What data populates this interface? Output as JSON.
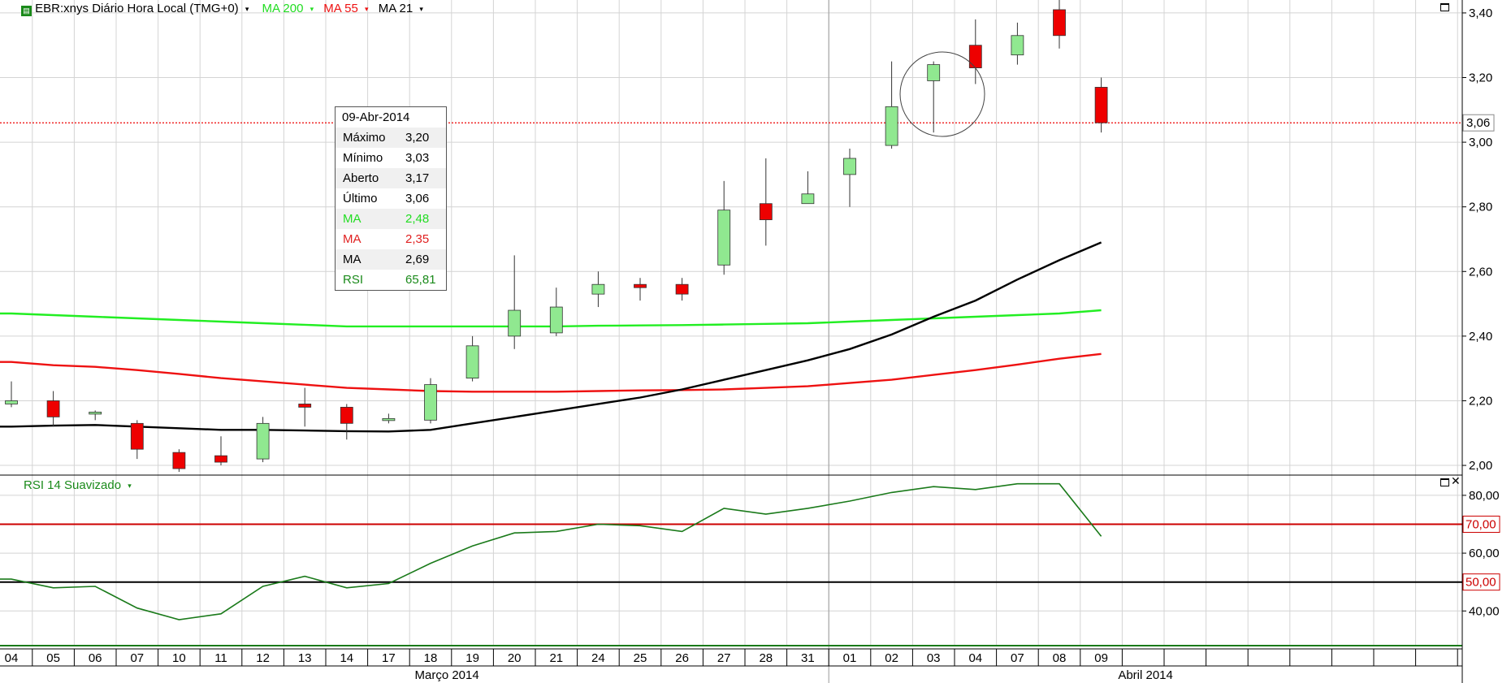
{
  "header": {
    "symbol": "EBR:xnys Diário Hora Local (TMG+0)",
    "ma200": "MA 200",
    "ma55": "MA 55",
    "ma21": "MA 21",
    "caret": "▾"
  },
  "rsi_header": {
    "label": "RSI 14 Suavizado"
  },
  "tooltip": {
    "date": "09-Abr-2014",
    "rows": [
      {
        "label": "Máximo",
        "value": "3,20",
        "color": "#000000"
      },
      {
        "label": "Mínimo",
        "value": "3,03",
        "color": "#000000"
      },
      {
        "label": "Aberto",
        "value": "3,17",
        "color": "#000000"
      },
      {
        "label": "Último",
        "value": "3,06",
        "color": "#000000"
      },
      {
        "label": "MA",
        "value": "2,48",
        "color": "#22dd22"
      },
      {
        "label": "MA",
        "value": "2,35",
        "color": "#e02020"
      },
      {
        "label": "MA",
        "value": "2,69",
        "color": "#000000"
      },
      {
        "label": "RSI",
        "value": "65,81",
        "color": "#1a8a1a"
      }
    ]
  },
  "colors": {
    "up": "#90e890",
    "down": "#ee0000",
    "ma200": "#22ee22",
    "ma55": "#ee1111",
    "ma21": "#000000",
    "rsi": "#1a7a1a",
    "level70": "#cc0000",
    "grid": "#d4d4d4"
  },
  "chart_data": [
    {
      "type": "candlestick",
      "title": "EBR:xnys Diário Hora Local (TMG+0)",
      "ylim": [
        1.97,
        3.44
      ],
      "y_ticks": [
        "3,40",
        "3,20",
        "3,00",
        "2,80",
        "2,60",
        "2,40",
        "2,20",
        "2,00"
      ],
      "y_tick_values": [
        3.4,
        3.2,
        3.0,
        2.8,
        2.6,
        2.4,
        2.2,
        2.0
      ],
      "categories": [
        "04",
        "05",
        "06",
        "07",
        "10",
        "11",
        "12",
        "13",
        "14",
        "17",
        "18",
        "19",
        "20",
        "21",
        "24",
        "25",
        "26",
        "27",
        "28",
        "31",
        "01",
        "02",
        "03",
        "04",
        "07",
        "08",
        "09"
      ],
      "month_labels": [
        "Março 2014",
        "Abril 2014"
      ],
      "last_price": 3.06,
      "last_price_label": "3,06",
      "candles": [
        {
          "o": 2.19,
          "h": 2.26,
          "l": 2.18,
          "c": 2.2
        },
        {
          "o": 2.2,
          "h": 2.23,
          "l": 2.12,
          "c": 2.15
        },
        {
          "o": 2.16,
          "h": 2.17,
          "l": 2.14,
          "c": 2.165
        },
        {
          "o": 2.13,
          "h": 2.14,
          "l": 2.02,
          "c": 2.05
        },
        {
          "o": 2.04,
          "h": 2.05,
          "l": 1.98,
          "c": 1.99
        },
        {
          "o": 2.03,
          "h": 2.09,
          "l": 2.0,
          "c": 2.01
        },
        {
          "o": 2.02,
          "h": 2.15,
          "l": 2.01,
          "c": 2.13
        },
        {
          "o": 2.19,
          "h": 2.24,
          "l": 2.12,
          "c": 2.18
        },
        {
          "o": 2.18,
          "h": 2.19,
          "l": 2.08,
          "c": 2.13
        },
        {
          "o": 2.14,
          "h": 2.16,
          "l": 2.13,
          "c": 2.145
        },
        {
          "o": 2.14,
          "h": 2.27,
          "l": 2.13,
          "c": 2.25
        },
        {
          "o": 2.27,
          "h": 2.4,
          "l": 2.26,
          "c": 2.37
        },
        {
          "o": 2.4,
          "h": 2.65,
          "l": 2.36,
          "c": 2.48
        },
        {
          "o": 2.41,
          "h": 2.55,
          "l": 2.4,
          "c": 2.49
        },
        {
          "o": 2.53,
          "h": 2.6,
          "l": 2.49,
          "c": 2.56
        },
        {
          "o": 2.56,
          "h": 2.58,
          "l": 2.51,
          "c": 2.55
        },
        {
          "o": 2.56,
          "h": 2.58,
          "l": 2.51,
          "c": 2.53
        },
        {
          "o": 2.62,
          "h": 2.88,
          "l": 2.59,
          "c": 2.79
        },
        {
          "o": 2.81,
          "h": 2.95,
          "l": 2.68,
          "c": 2.76
        },
        {
          "o": 2.81,
          "h": 2.91,
          "l": 2.81,
          "c": 2.84
        },
        {
          "o": 2.9,
          "h": 2.98,
          "l": 2.8,
          "c": 2.95
        },
        {
          "o": 2.99,
          "h": 3.25,
          "l": 2.98,
          "c": 3.11
        },
        {
          "o": 3.19,
          "h": 3.25,
          "l": 3.03,
          "c": 3.24
        },
        {
          "o": 3.3,
          "h": 3.38,
          "l": 3.18,
          "c": 3.23
        },
        {
          "o": 3.27,
          "h": 3.37,
          "l": 3.24,
          "c": 3.33
        },
        {
          "o": 3.41,
          "h": 3.45,
          "l": 3.29,
          "c": 3.33
        },
        {
          "o": 3.17,
          "h": 3.2,
          "l": 3.03,
          "c": 3.06
        }
      ],
      "series": [
        {
          "name": "MA 200",
          "values": [
            2.47,
            2.465,
            2.46,
            2.455,
            2.45,
            2.445,
            2.44,
            2.435,
            2.43,
            2.43,
            2.43,
            2.43,
            2.43,
            2.43,
            2.432,
            2.433,
            2.434,
            2.436,
            2.438,
            2.44,
            2.445,
            2.45,
            2.455,
            2.46,
            2.465,
            2.47,
            2.48
          ]
        },
        {
          "name": "MA 55",
          "values": [
            2.32,
            2.31,
            2.305,
            2.295,
            2.283,
            2.27,
            2.26,
            2.25,
            2.24,
            2.235,
            2.23,
            2.228,
            2.228,
            2.228,
            2.23,
            2.232,
            2.233,
            2.235,
            2.24,
            2.245,
            2.255,
            2.265,
            2.28,
            2.295,
            2.312,
            2.33,
            2.345
          ]
        },
        {
          "name": "MA 21",
          "values": [
            2.12,
            2.123,
            2.125,
            2.12,
            2.115,
            2.11,
            2.11,
            2.108,
            2.106,
            2.105,
            2.11,
            2.13,
            2.15,
            2.17,
            2.19,
            2.21,
            2.235,
            2.265,
            2.295,
            2.325,
            2.36,
            2.405,
            2.46,
            2.51,
            2.575,
            2.635,
            2.69
          ]
        }
      ]
    },
    {
      "type": "line",
      "title": "RSI 14 Suavizado",
      "ylim": [
        28,
        87
      ],
      "y_ticks": [
        "80,00",
        "60,00",
        "40,00"
      ],
      "y_tick_values": [
        80,
        60,
        40
      ],
      "levels": [
        {
          "value": 70,
          "label": "70,00"
        },
        {
          "value": 50,
          "label": "50,00"
        }
      ],
      "series": [
        {
          "name": "RSI",
          "values": [
            51,
            48,
            48.5,
            41,
            37,
            39,
            48.5,
            52,
            48,
            49.5,
            56.5,
            62.5,
            67,
            67.5,
            70,
            69.5,
            67.5,
            75.5,
            73.5,
            75.5,
            78,
            81,
            83,
            82,
            84,
            84,
            65.81
          ]
        }
      ]
    }
  ]
}
